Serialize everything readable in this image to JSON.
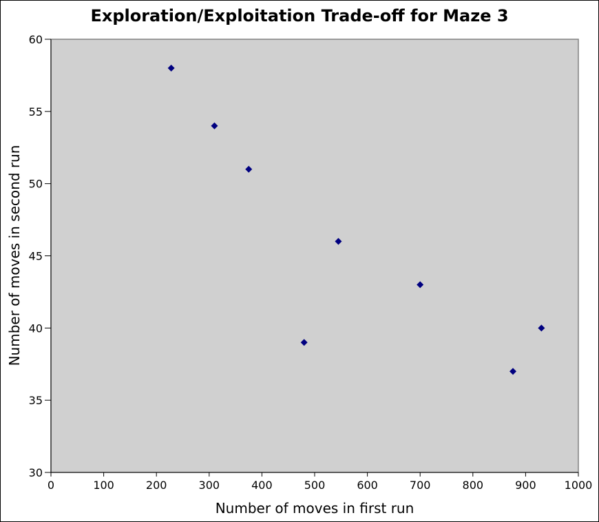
{
  "chart_data": {
    "type": "scatter",
    "title": "Exploration/Exploitation Trade-off for Maze 3",
    "xlabel": "Number of moves in first run",
    "ylabel": "Number of moves in second run",
    "xlim": [
      0,
      1000
    ],
    "ylim": [
      30,
      60
    ],
    "x_ticks": [
      0,
      100,
      200,
      300,
      400,
      500,
      600,
      700,
      800,
      900,
      1000
    ],
    "y_ticks": [
      30,
      35,
      40,
      45,
      50,
      55,
      60
    ],
    "grid": false,
    "legend": "none",
    "plot_background": "#d0d0d0",
    "marker_color": "#000080",
    "marker": "diamond",
    "series": [
      {
        "points": [
          {
            "x": 228,
            "y": 58
          },
          {
            "x": 310,
            "y": 54
          },
          {
            "x": 375,
            "y": 51
          },
          {
            "x": 480,
            "y": 39
          },
          {
            "x": 545,
            "y": 46
          },
          {
            "x": 700,
            "y": 43
          },
          {
            "x": 876,
            "y": 37
          },
          {
            "x": 930,
            "y": 40
          }
        ]
      }
    ]
  }
}
